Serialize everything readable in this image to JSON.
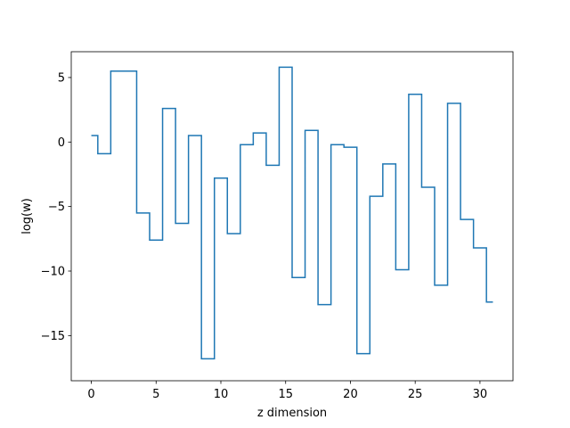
{
  "chart_data": {
    "type": "line",
    "drawstyle": "steps-mid",
    "title": "",
    "xlabel": "z dimension",
    "ylabel": "log(w)",
    "xlim": [
      -1.55,
      32.55
    ],
    "ylim": [
      -18.5,
      7.0
    ],
    "xticks": [
      0,
      5,
      10,
      15,
      20,
      25,
      30
    ],
    "yticks": [
      -15,
      -10,
      -5,
      0,
      5
    ],
    "xtick_labels": [
      "0",
      "5",
      "10",
      "15",
      "20",
      "25",
      "30"
    ],
    "ytick_labels": [
      "−15",
      "−10",
      "−5",
      "0",
      "5"
    ],
    "grid": false,
    "series": [
      {
        "color": "#1f77b4",
        "x": [
          0,
          1,
          2,
          3,
          4,
          5,
          6,
          7,
          8,
          9,
          10,
          11,
          12,
          13,
          14,
          15,
          16,
          17,
          18,
          19,
          20,
          21,
          22,
          23,
          24,
          25,
          26,
          27,
          28,
          29,
          30,
          31
        ],
        "values": [
          0.5,
          -0.9,
          5.5,
          5.5,
          -5.5,
          -7.6,
          2.6,
          -6.3,
          0.5,
          -16.8,
          -2.8,
          -7.1,
          -0.2,
          0.7,
          -1.8,
          5.8,
          -10.5,
          0.9,
          -12.6,
          -0.2,
          -0.4,
          -16.4,
          -4.2,
          -1.7,
          -9.9,
          3.7,
          -3.5,
          -11.1,
          3.0,
          -6.0,
          -8.2,
          -12.4
        ]
      }
    ]
  }
}
